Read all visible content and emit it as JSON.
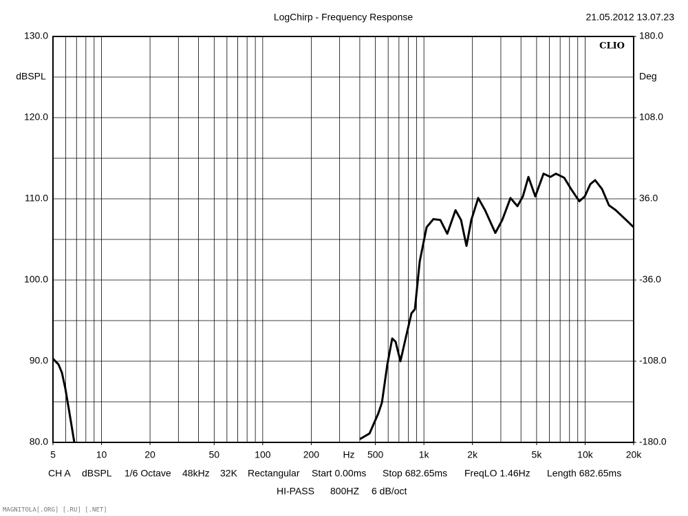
{
  "chart_data": {
    "type": "line",
    "title": "LogChirp - Frequency Response",
    "timestamp": "21.05.2012 13.07.23",
    "badge": "CLIO",
    "ylabel": "dBSPL",
    "y2label": "Deg",
    "xlabel": "Hz",
    "log_x": true,
    "grid": true,
    "xlim": [
      5,
      20000
    ],
    "ylim": [
      80,
      130
    ],
    "y2lim": [
      -180,
      180
    ],
    "xticks": [
      5,
      10,
      20,
      50,
      100,
      200,
      500,
      {
        "value": 1000,
        "label": "1k"
      },
      {
        "value": 2000,
        "label": "2k"
      },
      {
        "value": 5000,
        "label": "5k"
      },
      {
        "value": 10000,
        "label": "10k"
      },
      {
        "value": 20000,
        "label": "20k"
      }
    ],
    "xgrid": [
      5,
      6,
      7,
      8,
      9,
      10,
      20,
      30,
      40,
      50,
      60,
      70,
      80,
      90,
      100,
      200,
      300,
      400,
      500,
      600,
      700,
      800,
      900,
      1000,
      2000,
      3000,
      4000,
      5000,
      6000,
      7000,
      8000,
      9000,
      10000,
      20000
    ],
    "yticks": [
      {
        "value": 130,
        "label": "130.0"
      },
      {
        "value": 120,
        "label": "120.0"
      },
      {
        "value": 110,
        "label": "110.0"
      },
      {
        "value": 100,
        "label": "100.0"
      },
      {
        "value": 90,
        "label": "90.0"
      },
      {
        "value": 80,
        "label": "80.0"
      }
    ],
    "ygrid_minor": [
      125,
      115,
      105,
      95,
      85
    ],
    "y2ticks": [
      {
        "value": 180,
        "label": "180.0"
      },
      {
        "value": 108,
        "label": "108.0"
      },
      {
        "value": 36,
        "label": "36.0"
      },
      {
        "value": -36,
        "label": "-36.0"
      },
      {
        "value": -108,
        "label": "-108.0"
      },
      {
        "value": -180,
        "label": "-180.0"
      }
    ],
    "series": [
      {
        "color": "#000000",
        "x": [
          5,
          5.41,
          5.68,
          5.97,
          6.27,
          6.59,
          6.78,
          null,
          400,
          460,
          522,
          549,
          593,
          636,
          667,
          715,
          774,
          837,
          879,
          942,
          1039,
          1145,
          1264,
          1396,
          1570,
          1699,
          1837,
          1968,
          2172,
          2395,
          2774,
          3062,
          3444,
          3802,
          4111,
          4449,
          4909,
          5523,
          6094,
          6591,
          7415,
          8184,
          9204,
          9954,
          10766,
          11534,
          12735,
          14060,
          15491,
          17950,
          20000
        ],
        "values": [
          90.3,
          89.6,
          88.6,
          86.6,
          84.1,
          81.5,
          80.0,
          null,
          80.4,
          81.1,
          83.6,
          84.9,
          89.6,
          92.8,
          92.4,
          90.0,
          93.0,
          95.9,
          96.4,
          102.3,
          106.5,
          107.5,
          107.4,
          105.7,
          108.6,
          107.4,
          104.2,
          107.4,
          110.1,
          108.6,
          105.8,
          107.4,
          110.1,
          109.1,
          110.3,
          112.7,
          110.3,
          113.1,
          112.7,
          113.1,
          112.6,
          111.2,
          109.7,
          110.3,
          111.8,
          112.3,
          111.2,
          109.2,
          108.6,
          107.4,
          106.5
        ]
      }
    ],
    "footer": [
      "CH A",
      "dBSPL",
      "1/6 Octave",
      "48kHz",
      "32K",
      "Rectangular",
      "Start 0.00ms",
      "Stop 682.65ms",
      "FreqLO 1.46Hz",
      "Length 682.65ms"
    ],
    "footer2": [
      "HI-PASS",
      "800HZ",
      "6 dB/oct"
    ],
    "watermark": "MAGNITOLA[.ORG] [.RU] [.NET]"
  }
}
